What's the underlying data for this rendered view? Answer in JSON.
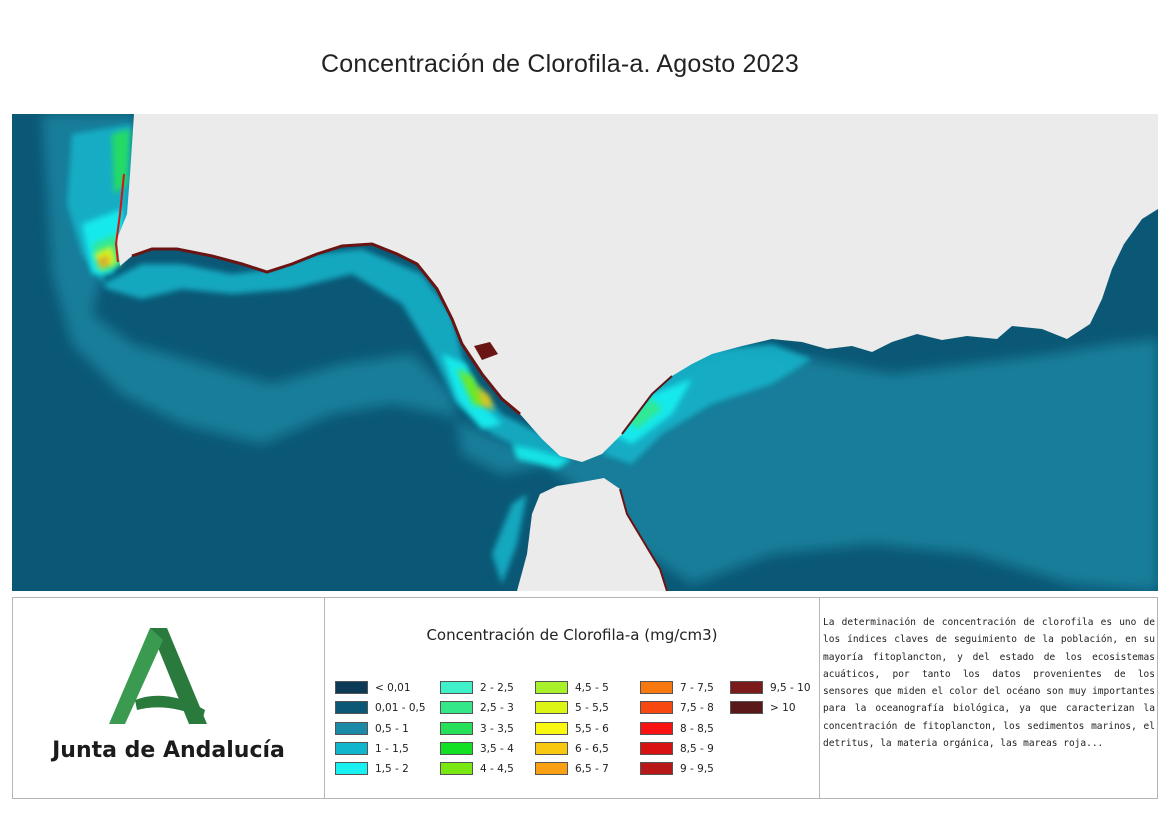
{
  "title": "Concentración de Clorofila-a. Agosto 2023",
  "map": {
    "sea_color": "#0b5876",
    "land_color": "#ebebeb",
    "coast_high_color": "#6b1414"
  },
  "logo": {
    "text": "Junta de Andalucía",
    "color": "#2e8b47"
  },
  "legend": {
    "title": "Concentración de Clorofila-a (mg/cm3)",
    "columns": [
      [
        {
          "label": "< 0,01",
          "color": "#0d3a56"
        },
        {
          "label": "0,01 - 0,5",
          "color": "#0b5876"
        },
        {
          "label": "0,5 - 1",
          "color": "#1a8aa6"
        },
        {
          "label": "1 - 1,5",
          "color": "#12b6cc"
        },
        {
          "label": "1,5 - 2",
          "color": "#19f0f0"
        }
      ],
      [
        {
          "label": "2 - 2,5",
          "color": "#3ff0c8"
        },
        {
          "label": "2,5 - 3",
          "color": "#34e88a"
        },
        {
          "label": "3 - 3,5",
          "color": "#26e05a"
        },
        {
          "label": "3,5 - 4",
          "color": "#12e022"
        },
        {
          "label": "4 - 4,5",
          "color": "#78e810"
        }
      ],
      [
        {
          "label": "4,5 - 5",
          "color": "#a8f02a"
        },
        {
          "label": "5 - 5,5",
          "color": "#dcf514"
        },
        {
          "label": "5,5 - 6",
          "color": "#f8f810"
        },
        {
          "label": "6 - 6,5",
          "color": "#f8c810"
        },
        {
          "label": "6,5 - 7",
          "color": "#f8a012"
        }
      ],
      [
        {
          "label": "7 - 7,5",
          "color": "#f87810"
        },
        {
          "label": "7,5 - 8",
          "color": "#f84810"
        },
        {
          "label": "8 - 8,5",
          "color": "#f81212"
        },
        {
          "label": "8,5 - 9",
          "color": "#d81212"
        },
        {
          "label": "9 - 9,5",
          "color": "#b81818"
        }
      ],
      [
        {
          "label": "9,5 - 10",
          "color": "#7a1a1a"
        },
        {
          "label": "> 10",
          "color": "#5a1818"
        }
      ]
    ]
  },
  "description": "La determinación de concentración de clorofila es uno de los índices claves de seguimiento de la población, en su mayoría fitoplancton, y del estado de los ecosistemas acuáticos, por tanto los datos provenientes de los sensores que miden el color del océano son muy importantes para la oceanografía biológica, ya que caracterizan la concentración de fitoplancton, los sedimentos marinos, el detritus, la materia orgánica, las mareas roja..."
}
